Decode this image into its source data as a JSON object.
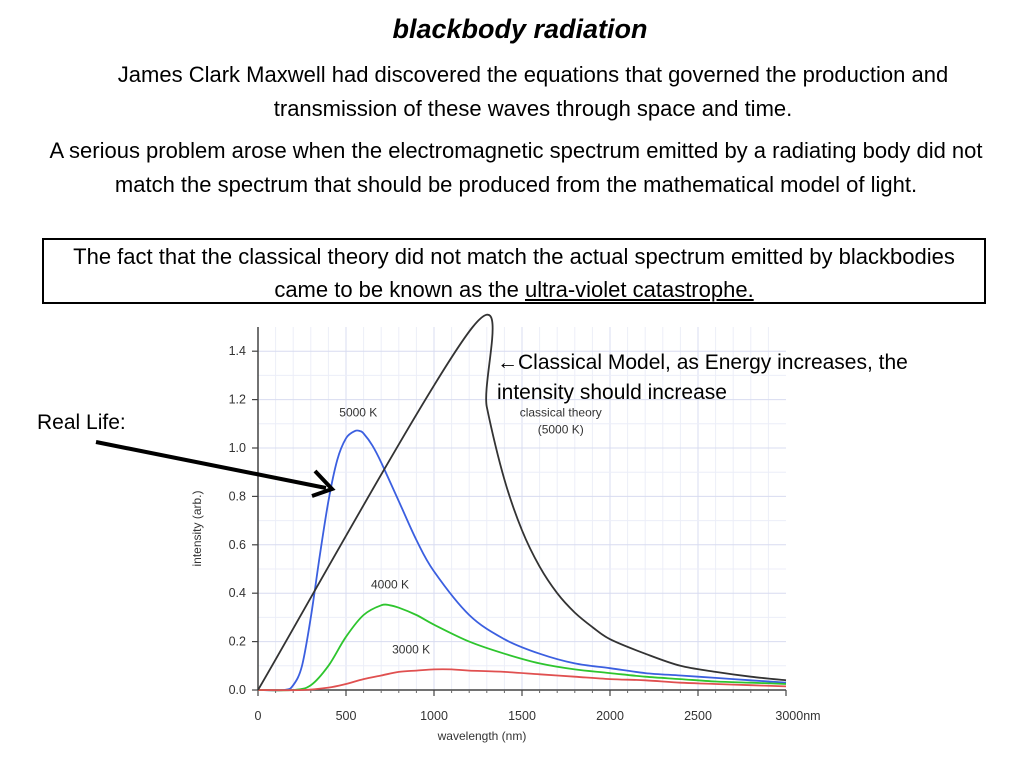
{
  "slide": {
    "title": "blackbody radiation",
    "para1": "James Clark Maxwell had discovered the equations that governed the production and transmission of these waves through space and time.",
    "para2": "A serious problem arose when the electromagnetic spectrum emitted by a radiating body did not match the spectrum that should be produced from the mathematical model of light.",
    "para3_prefix": "The fact that the classical theory did not match the actual spectrum emitted by blackbodies came to be known as the ",
    "para3_link": "ultra-violet catastrophe.",
    "real_life_label": "Real Life:",
    "classical_arrow": "←",
    "classical_annotation": "Classical Model, as Energy increases, the intensity should increase"
  },
  "chart_data": {
    "type": "line",
    "xlabel": "wavelength (nm)",
    "ylabel": "intensity (arb.)",
    "xlim": [
      0,
      3000
    ],
    "ylim": [
      0,
      1.5
    ],
    "x_ticks": [
      0,
      500,
      1000,
      1500,
      2000,
      2500,
      3000
    ],
    "x_tick_labels": [
      "0",
      "500",
      "1000",
      "1500",
      "2000",
      "2500",
      "3000nm"
    ],
    "y_ticks": [
      0.0,
      0.2,
      0.4,
      0.6,
      0.8,
      1.0,
      1.2,
      1.4
    ],
    "y_tick_labels": [
      "0.0",
      "0.2",
      "0.4",
      "0.6",
      "0.8",
      "1.0",
      "1.2",
      "1.4"
    ],
    "grid": true,
    "series": [
      {
        "name": "5000 K",
        "color": "#3b5fe0",
        "x": [
          150,
          200,
          250,
          300,
          350,
          400,
          450,
          500,
          550,
          580,
          600,
          650,
          700,
          800,
          900,
          1000,
          1200,
          1400,
          1600,
          1800,
          2000,
          2200,
          2400,
          2600,
          2800,
          3000
        ],
        "y": [
          0.0,
          0.02,
          0.1,
          0.3,
          0.55,
          0.78,
          0.95,
          1.04,
          1.07,
          1.07,
          1.06,
          1.01,
          0.94,
          0.78,
          0.62,
          0.49,
          0.31,
          0.21,
          0.15,
          0.11,
          0.09,
          0.07,
          0.06,
          0.05,
          0.04,
          0.03
        ]
      },
      {
        "name": "4000 K",
        "color": "#2ec52e",
        "x": [
          200,
          300,
          400,
          500,
          600,
          700,
          750,
          800,
          900,
          1000,
          1200,
          1400,
          1600,
          1800,
          2000,
          2200,
          2400,
          2600,
          2800,
          3000
        ],
        "y": [
          0.0,
          0.02,
          0.1,
          0.22,
          0.31,
          0.35,
          0.35,
          0.34,
          0.31,
          0.27,
          0.2,
          0.15,
          0.11,
          0.085,
          0.07,
          0.055,
          0.045,
          0.035,
          0.03,
          0.025
        ]
      },
      {
        "name": "3000 K",
        "color": "#e05050",
        "x": [
          250,
          400,
          500,
          600,
          700,
          800,
          900,
          1000,
          1100,
          1200,
          1400,
          1600,
          1800,
          2000,
          2200,
          2400,
          2600,
          2800,
          3000
        ],
        "y": [
          0.0,
          0.01,
          0.025,
          0.045,
          0.06,
          0.075,
          0.08,
          0.085,
          0.085,
          0.08,
          0.075,
          0.065,
          0.055,
          0.045,
          0.04,
          0.03,
          0.025,
          0.02,
          0.015
        ]
      },
      {
        "name": "classical theory (5000 K)",
        "color": "#333333",
        "x": [
          1220,
          1300,
          1400,
          1500,
          1600,
          1700,
          1800,
          1900,
          2000,
          2200,
          2400,
          2600,
          2800,
          3000
        ],
        "y": [
          1.5,
          1.17,
          0.87,
          0.66,
          0.51,
          0.4,
          0.32,
          0.26,
          0.21,
          0.15,
          0.1,
          0.075,
          0.055,
          0.04
        ]
      }
    ],
    "annotations": [
      {
        "text": "5000 K",
        "x": 570,
        "y": 1.13
      },
      {
        "text": "4000 K",
        "x": 750,
        "y": 0.42
      },
      {
        "text": "3000 K",
        "x": 870,
        "y": 0.15
      },
      {
        "text": "classical theory",
        "x": 1720,
        "y": 1.13
      },
      {
        "text": "(5000 K)",
        "x": 1720,
        "y": 1.06
      }
    ]
  }
}
